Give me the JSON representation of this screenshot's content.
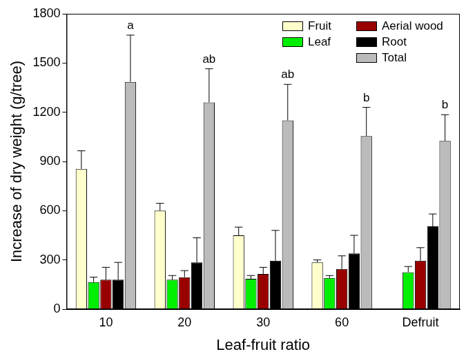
{
  "chart_data": {
    "type": "bar",
    "x_label": "Leaf-fruit ratio",
    "y_label": "Increase of dry weight (g/tree)",
    "categories": [
      "10",
      "20",
      "30",
      "60",
      "Defruit"
    ],
    "series": [
      {
        "name": "Fruit",
        "color": "#ffffcc",
        "values": [
          855,
          600,
          450,
          285,
          null
        ],
        "errors": [
          110,
          45,
          50,
          15,
          null
        ]
      },
      {
        "name": "Leaf",
        "color": "#00ee00",
        "values": [
          165,
          180,
          185,
          190,
          225
        ],
        "errors": [
          30,
          25,
          20,
          15,
          35
        ]
      },
      {
        "name": "Aerial wood",
        "color": "#990000",
        "values": [
          180,
          195,
          215,
          245,
          295
        ],
        "errors": [
          75,
          40,
          40,
          80,
          80
        ]
      },
      {
        "name": "Root",
        "color": "#000000",
        "values": [
          180,
          285,
          295,
          340,
          505
        ],
        "errors": [
          105,
          150,
          185,
          110,
          75
        ]
      },
      {
        "name": "Total",
        "color": "#bbbbbb",
        "values": [
          1385,
          1260,
          1150,
          1055,
          1025
        ],
        "errors": [
          285,
          205,
          220,
          175,
          160
        ],
        "letters": [
          "a",
          "ab",
          "ab",
          "b",
          "b"
        ]
      }
    ],
    "ylim": [
      0,
      1800
    ],
    "yticks": [
      0,
      300,
      600,
      900,
      1200,
      1500,
      1800
    ],
    "grid": false,
    "legend": "upper right"
  }
}
